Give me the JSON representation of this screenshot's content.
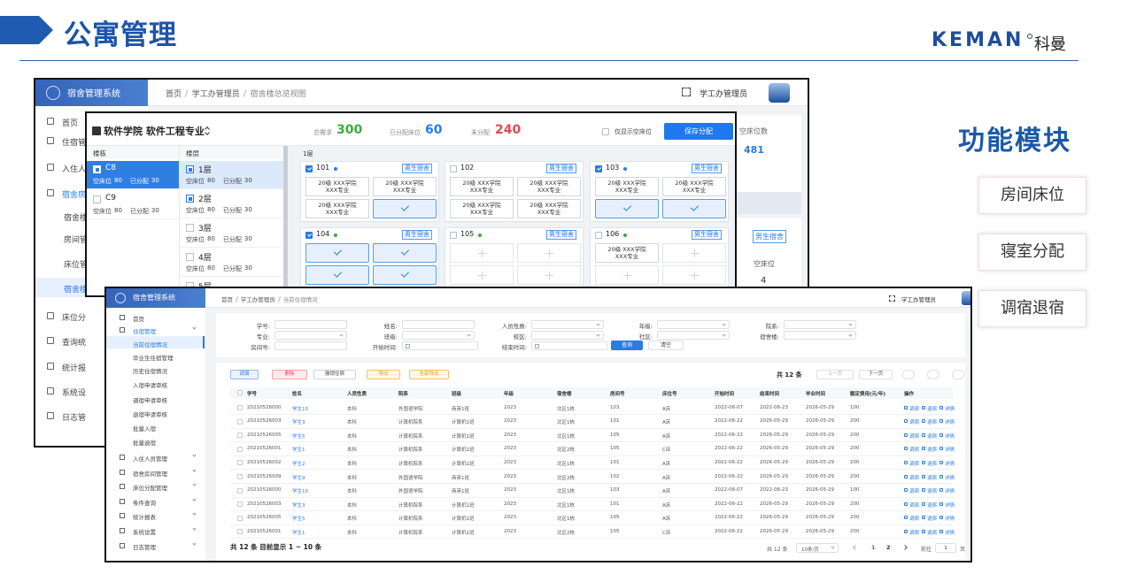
{
  "header": {
    "title": "公寓管理",
    "brand": "KEMAN",
    "brand_cn": "科曼"
  },
  "modules": {
    "title": "功能模块",
    "items": [
      "房间床位",
      "寝室分配",
      "调宿退宿"
    ]
  },
  "back_screen": {
    "brand": "宿舍管理系统",
    "menu": [
      {
        "label": "首页"
      },
      {
        "label": "住宿管"
      },
      {
        "label": "入住人"
      },
      {
        "label": "宿舍房",
        "active": true
      },
      {
        "label": "宿舍楼",
        "sub": true
      },
      {
        "label": "房间管",
        "sub": true
      },
      {
        "label": "床位管",
        "sub": true
      },
      {
        "label": "宿舍楼",
        "sub": true,
        "current": true
      },
      {
        "label": "床位分"
      },
      {
        "label": "查询统"
      },
      {
        "label": "统计报"
      },
      {
        "label": "系统设"
      },
      {
        "label": "日志管"
      }
    ],
    "breadcrumb": [
      "首页",
      "学工办管理员",
      "宿舍楼总览视图"
    ],
    "user": "学工办管理员",
    "stat_label": "空床位数",
    "stat_value": 481,
    "tag": "男生宿舍",
    "bed_label": "空床位",
    "bed_value": 4
  },
  "modal": {
    "title": "软件学院 软件工程专业",
    "stats": [
      {
        "label": "总需求",
        "value": 300,
        "color": "#3daa3d"
      },
      {
        "label": "已分配床位",
        "value": 60,
        "color": "#2a7be4"
      },
      {
        "label": "未分配",
        "value": 240,
        "color": "#e5484d"
      }
    ],
    "filter": "仅显示空床位",
    "save": "保存分配",
    "building_header": "楼栋",
    "floor_header": "楼层",
    "empty_label": "空床位",
    "assigned_label": "已分配",
    "buildings": [
      {
        "name": "C8",
        "empty": 80,
        "assigned": 30,
        "selected": true
      },
      {
        "name": "C9",
        "empty": 80,
        "assigned": 30
      }
    ],
    "floors": [
      {
        "name": "1层",
        "empty": 80,
        "assigned": 30,
        "selected": true,
        "checked": true
      },
      {
        "name": "2层",
        "empty": 80,
        "assigned": 30,
        "checked": true
      },
      {
        "name": "3层",
        "empty": 80,
        "assigned": 30
      },
      {
        "name": "4层",
        "empty": 80,
        "assigned": 30
      },
      {
        "name": "5层"
      }
    ],
    "floor_title": "1层",
    "rooms": [
      {
        "number": "101",
        "checked": true,
        "dot": "#2a7be4",
        "tag": "男生宿舍",
        "beds": [
          {
            "text": "20级 XXX学院\nXXX专业"
          },
          {
            "text": "20级 XXX学院\nXXX专业"
          },
          {
            "text": "20级 XXX学院\nXXX专业"
          },
          {
            "status": "assigned"
          }
        ]
      },
      {
        "number": "102",
        "tag": "男生宿舍",
        "beds": [
          {
            "text": "20级 XXX学院\nXXX专业"
          },
          {
            "text": "20级 XXX学院\nXXX专业"
          },
          {
            "text": "20级 XXX学院\nXXX专业"
          },
          {
            "text": "20级 XXX学院\nXXX专业"
          }
        ]
      },
      {
        "number": "103",
        "checked": true,
        "dot": "#2a7be4",
        "tag": "男生宿舍",
        "beds": [
          {
            "text": "20级 XXX学院\nXXX专业"
          },
          {
            "text": "20级 XXX学院\nXXX专业"
          },
          {
            "status": "assigned"
          },
          {
            "status": "assigned"
          }
        ]
      },
      {
        "number": "104",
        "checked": true,
        "dot": "#3daa3d",
        "tag": "男生宿舍",
        "beds": [
          {
            "status": "assigned"
          },
          {
            "status": "assigned"
          },
          {
            "status": "assigned"
          },
          {
            "status": "assigned"
          }
        ]
      },
      {
        "number": "105",
        "dot": "#3daa3d",
        "tag": "男生宿舍",
        "beds": [
          {
            "status": "empty"
          },
          {
            "status": "empty"
          },
          {
            "status": "empty"
          },
          {
            "status": "empty"
          }
        ]
      },
      {
        "number": "106",
        "dot": "#3daa3d",
        "tag": "男生宿舍",
        "beds": [
          {
            "text": "20级 XXX学院\nXXX专业"
          },
          {
            "status": "empty"
          },
          {
            "status": "empty"
          },
          {
            "status": "empty"
          }
        ]
      }
    ]
  },
  "front_screen": {
    "brand": "宿舍管理系统",
    "breadcrumb": [
      "首页",
      "学工办管理员",
      "当前住宿情况"
    ],
    "user": "学工办管理员",
    "menu": [
      {
        "label": "首页"
      },
      {
        "label": "住宿管理",
        "group": true,
        "active": true
      },
      {
        "label": "当前住宿情况",
        "sub": true,
        "current": true
      },
      {
        "label": "毕业生住宿管理",
        "sub": true
      },
      {
        "label": "历史住宿情况",
        "sub": true
      },
      {
        "label": "入宿申请审核",
        "sub": true
      },
      {
        "label": "调宿申请审核",
        "sub": true
      },
      {
        "label": "退宿申请审核",
        "sub": true
      },
      {
        "label": "批量入宿",
        "sub": true
      },
      {
        "label": "批量退宿",
        "sub": true
      },
      {
        "label": "入住人员管理",
        "group": true
      },
      {
        "label": "宿舍房间管理",
        "group": true
      },
      {
        "label": "床位分配管理",
        "group": true
      },
      {
        "label": "条件查询",
        "group": true
      },
      {
        "label": "统计报表",
        "group": true
      },
      {
        "label": "系统设置",
        "group": true
      },
      {
        "label": "日志管理",
        "group": true
      }
    ],
    "filters": [
      [
        "学号:",
        "姓名:",
        "人员性质:",
        "年级:",
        "院系:"
      ],
      [
        "专业:",
        "班级:",
        "校区:",
        "社区:",
        "宿舍楼:"
      ],
      [
        "房间号:",
        "开始时间:",
        "结束时间:"
      ]
    ],
    "search": "查询",
    "reset": "清空",
    "actions": [
      "调宿",
      "删除",
      "撤销住宿",
      "导出",
      "全部导出"
    ],
    "total": "共 12 条",
    "prev": "上一页",
    "next": "下一页",
    "columns": [
      "学号",
      "姓名",
      "人员性质",
      "院系",
      "班级",
      "年级",
      "宿舍楼",
      "房间号",
      "床位号",
      "开始时间",
      "结束时间",
      "毕业时间",
      "额定费用(元/年)",
      "操作"
    ],
    "rows": [
      [
        "20210526000",
        "学生10",
        "本科",
        "外国语学院",
        "商英1班",
        "2023",
        "北区1栋",
        "103",
        "A床",
        "2022-06-07",
        "2022-06-23",
        "2026-05-29",
        "100"
      ],
      [
        "20210526003",
        "学生3",
        "本科",
        "计算机院系",
        "计算机1班",
        "2023",
        "北区1栋",
        "101",
        "A床",
        "2022-06-22",
        "2026-05-29",
        "2026-05-29",
        "200"
      ],
      [
        "20210526005",
        "学生5",
        "本科",
        "计算机院系",
        "计算机1班",
        "2023",
        "北区1栋",
        "105",
        "A床",
        "2022-06-22",
        "2026-05-29",
        "2026-05-29",
        "200"
      ],
      [
        "20210526001",
        "学生1",
        "本科",
        "计算机院系",
        "计算机1班",
        "2023",
        "北区2栋",
        "105",
        "C床",
        "2022-06-22",
        "2026-05-29",
        "2026-05-29",
        "200"
      ],
      [
        "20210526002",
        "学生2",
        "本科",
        "计算机院系",
        "计算机1班",
        "2023",
        "北区1栋",
        "101",
        "A床",
        "2022-06-22",
        "2026-05-29",
        "2026-05-29",
        "200"
      ],
      [
        "20210526009",
        "学生9",
        "本科",
        "外国语学院",
        "商英1班",
        "2023",
        "北区2栋",
        "102",
        "A床",
        "2022-06-22",
        "2026-05-29",
        "2026-05-29",
        "200"
      ],
      [
        "20210526000",
        "学生10",
        "本科",
        "外国语学院",
        "商英1班",
        "2023",
        "北区1栋",
        "103",
        "A床",
        "2022-06-07",
        "2022-06-23",
        "2026-05-29",
        "100"
      ],
      [
        "20210526003",
        "学生3",
        "本科",
        "计算机院系",
        "计算机1班",
        "2023",
        "北区1栋",
        "101",
        "A床",
        "2022-06-22",
        "2026-05-29",
        "2026-05-29",
        "200"
      ],
      [
        "20210526005",
        "学生5",
        "本科",
        "计算机院系",
        "计算机1班",
        "2023",
        "北区1栋",
        "105",
        "A床",
        "2022-06-22",
        "2026-05-29",
        "2026-05-29",
        "200"
      ],
      [
        "20210526001",
        "学生1",
        "本科",
        "计算机院系",
        "计算机1班",
        "2023",
        "北区2栋",
        "105",
        "C床",
        "2022-06-22",
        "2026-05-29",
        "2026-05-29",
        "200"
      ]
    ],
    "row_actions": [
      "调宿",
      "退宿",
      "详情"
    ],
    "footer": "共 12 条 目前显示 1 ~ 10 条",
    "pager": {
      "total": "共 12 条",
      "size": "10条/页",
      "pages": [
        "1",
        "2"
      ],
      "goto": "前往",
      "goto_value": "1",
      "unit": "页"
    }
  }
}
